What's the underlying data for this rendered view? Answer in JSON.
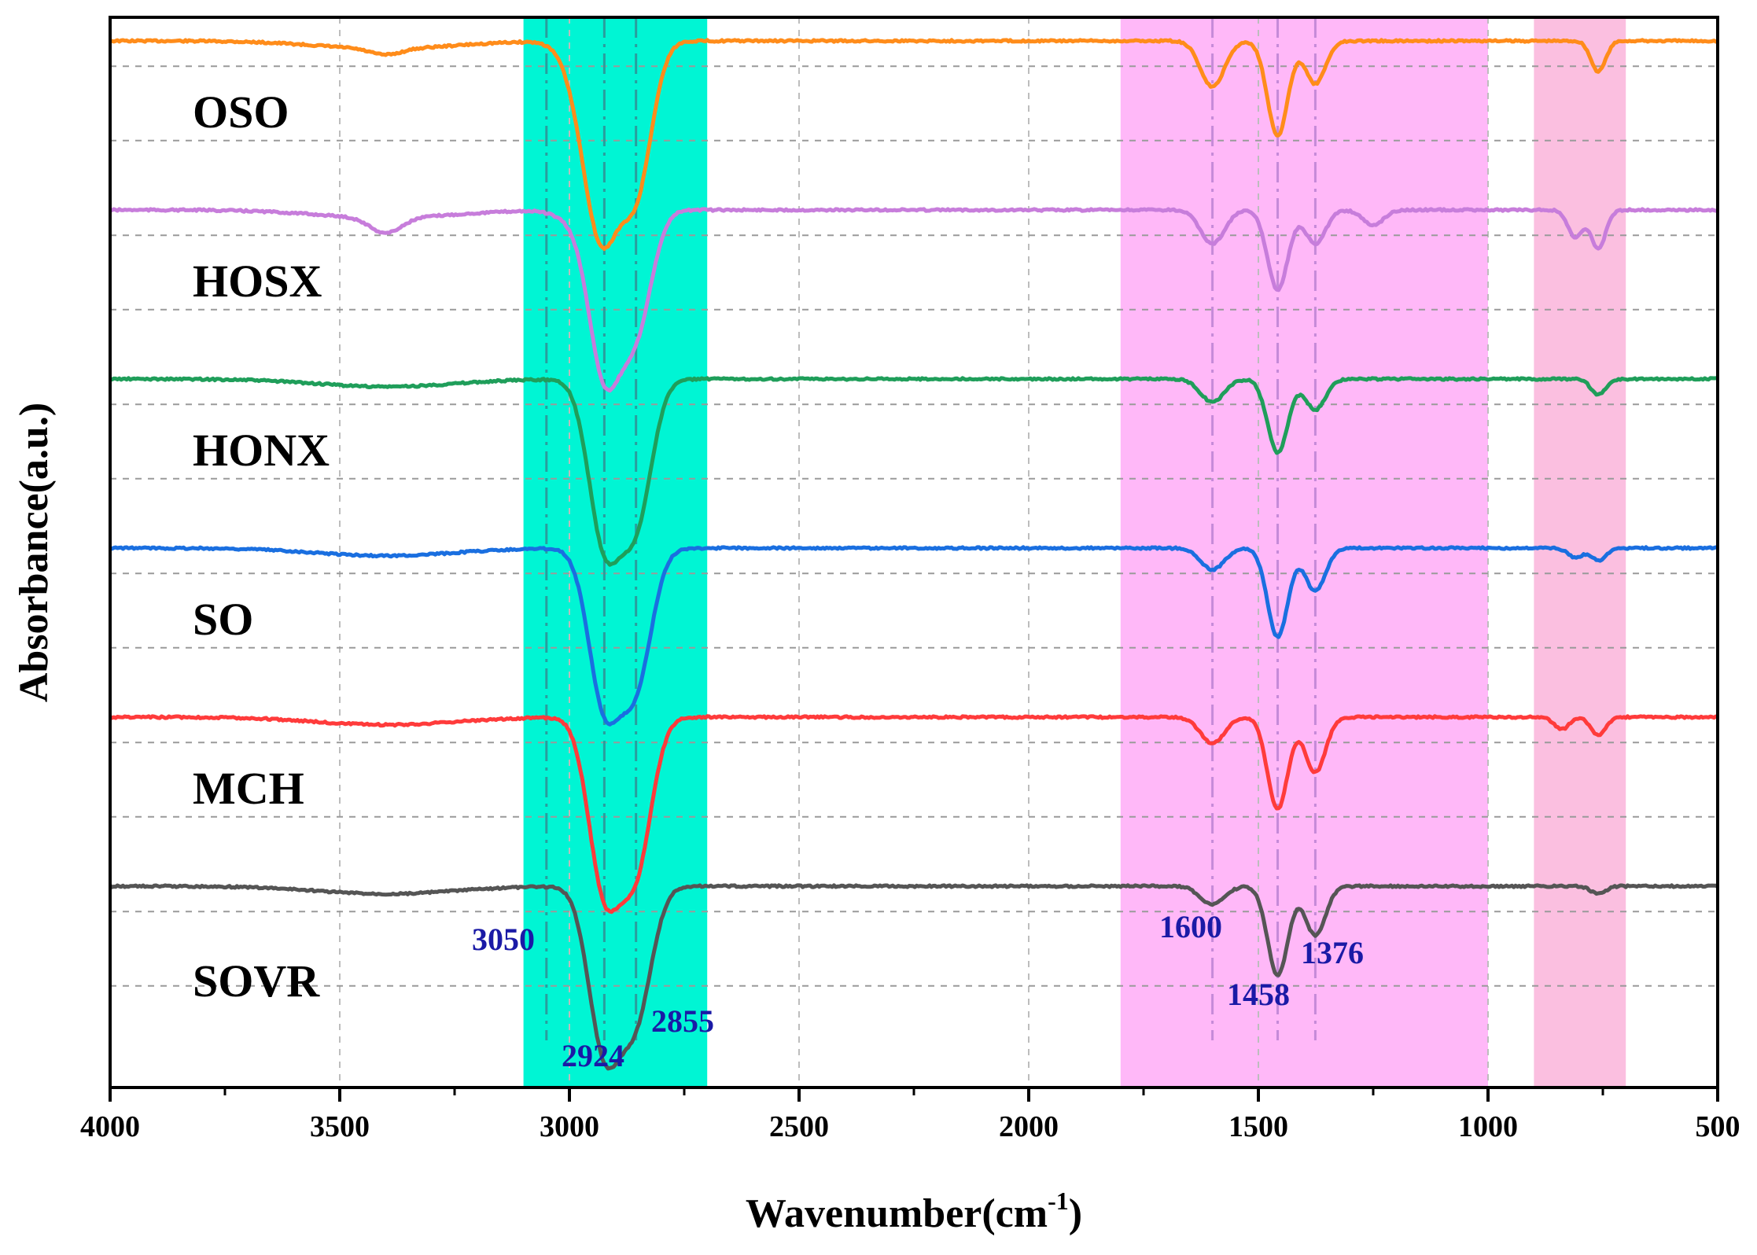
{
  "chart_data": {
    "type": "line",
    "title": "",
    "xlabel": "Wavenumber(cm",
    "xlabel_sup": "-1",
    "xlabel_close": ")",
    "ylabel": "Absorbance(a.u.)",
    "xlim": [
      4000,
      500
    ],
    "x_ticks": [
      "4000",
      "3500",
      "3000",
      "2500",
      "2000",
      "1500",
      "1000",
      "500"
    ],
    "x_tick_values": [
      4000,
      3500,
      3000,
      2500,
      2000,
      1500,
      1000,
      500
    ],
    "grid": true,
    "bands": [
      {
        "from": 3100,
        "to": 2700,
        "color": "#00f5d4"
      },
      {
        "from": 1800,
        "to": 1000,
        "color": "#ffb8f8"
      },
      {
        "from": 900,
        "to": 700,
        "color": "#fbbfe0"
      }
    ],
    "reference_lines": [
      {
        "x": 3050,
        "color": "#2a9d9d"
      },
      {
        "x": 2924,
        "color": "#2a9d9d"
      },
      {
        "x": 2855,
        "color": "#2a9d9d"
      },
      {
        "x": 1600,
        "color": "#c58ad8"
      },
      {
        "x": 1458,
        "color": "#c58ad8"
      },
      {
        "x": 1376,
        "color": "#c58ad8"
      }
    ],
    "series": [
      {
        "name": "OSO",
        "color": "#ff8c1a",
        "peaks": [
          [
            3000,
            0.05
          ],
          [
            2924,
            1.0
          ],
          [
            2855,
            0.95
          ],
          [
            2960,
            0.4
          ],
          [
            1600,
            0.3
          ],
          [
            1458,
            0.62
          ],
          [
            1376,
            0.28
          ],
          [
            760,
            0.2
          ],
          [
            3400,
            0.04
          ]
        ]
      },
      {
        "name": "HOSX",
        "color": "#c77ddb",
        "peaks": [
          [
            3000,
            0.05
          ],
          [
            2924,
            1.05
          ],
          [
            2855,
            0.75
          ],
          [
            1600,
            0.22
          ],
          [
            1458,
            0.52
          ],
          [
            1376,
            0.22
          ],
          [
            1250,
            0.1
          ],
          [
            810,
            0.18
          ],
          [
            760,
            0.25
          ],
          [
            3400,
            0.1
          ]
        ]
      },
      {
        "name": "HONX",
        "color": "#1f9e5a",
        "peaks": [
          [
            2924,
            1.05
          ],
          [
            2855,
            0.9
          ],
          [
            1600,
            0.15
          ],
          [
            1458,
            0.48
          ],
          [
            1376,
            0.2
          ],
          [
            760,
            0.1
          ]
        ]
      },
      {
        "name": "SO",
        "color": "#1a6fe0",
        "peaks": [
          [
            2924,
            1.0
          ],
          [
            2855,
            0.85
          ],
          [
            1600,
            0.14
          ],
          [
            1458,
            0.58
          ],
          [
            1376,
            0.28
          ],
          [
            810,
            0.06
          ],
          [
            760,
            0.08
          ]
        ]
      },
      {
        "name": "MCH",
        "color": "#ff3b3b",
        "peaks": [
          [
            2924,
            1.1
          ],
          [
            2855,
            0.95
          ],
          [
            1600,
            0.17
          ],
          [
            1458,
            0.6
          ],
          [
            1376,
            0.36
          ],
          [
            840,
            0.08
          ],
          [
            760,
            0.12
          ]
        ]
      },
      {
        "name": "SOVR",
        "color": "#555555",
        "peaks": [
          [
            2924,
            1.05
          ],
          [
            2855,
            0.82
          ],
          [
            1600,
            0.12
          ],
          [
            1458,
            0.58
          ],
          [
            1376,
            0.32
          ],
          [
            760,
            0.05
          ]
        ]
      }
    ],
    "peak_labels": [
      {
        "text": "3050",
        "x": 3050
      },
      {
        "text": "2924",
        "x": 2924
      },
      {
        "text": "2855",
        "x": 2855
      },
      {
        "text": "1600",
        "x": 1600
      },
      {
        "text": "1458",
        "x": 1458
      },
      {
        "text": "1376",
        "x": 1376
      }
    ]
  }
}
